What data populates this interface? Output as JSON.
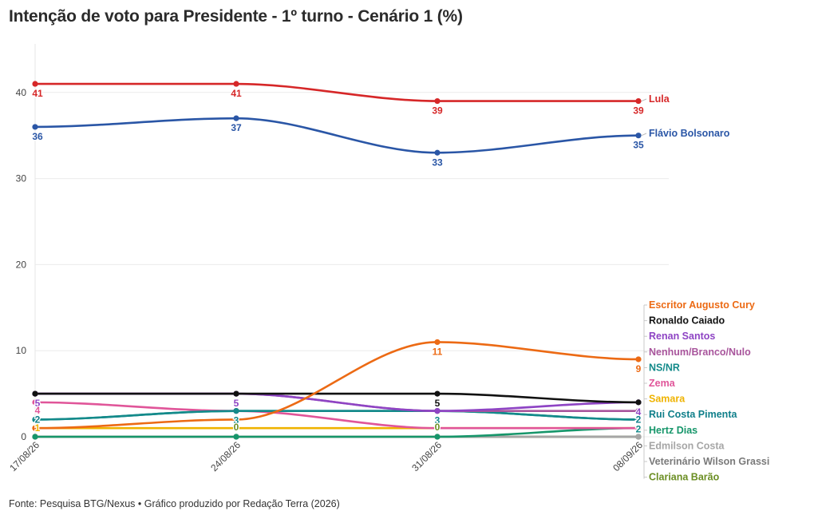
{
  "title": "Intenção de voto para Presidente - 1º turno - Cenário 1 (%)",
  "footer": "Fonte: Pesquisa BTG/Nexus • Gráfico produzido por Redação Terra (2026)",
  "chart_data": {
    "type": "line",
    "categories": [
      "17/08/26",
      "24/08/26",
      "31/08/26",
      "08/09/26"
    ],
    "ylim": [
      0,
      45
    ],
    "yticks": [
      0,
      10,
      20,
      30,
      40
    ],
    "grid": true,
    "legend": "direct labels at line ends (right)",
    "series": [
      {
        "name": "Lula",
        "values": [
          41,
          41,
          39,
          39
        ],
        "color": "#d62728"
      },
      {
        "name": "Flávio Bolsonaro",
        "values": [
          36,
          37,
          33,
          35
        ],
        "color": "#2a56a6"
      },
      {
        "name": "Escritor Augusto Cury",
        "values": [
          1,
          2,
          11,
          9
        ],
        "color": "#ec6a14"
      },
      {
        "name": "Ronaldo Caiado",
        "values": [
          5,
          5,
          5,
          4
        ],
        "color": "#111111"
      },
      {
        "name": "Renan Santos",
        "values": [
          5,
          5,
          3,
          4
        ],
        "color": "#8e44c4"
      },
      {
        "name": "Nenhum/Branco/Nulo",
        "values": [
          5,
          5,
          3,
          3
        ],
        "color": "#a8559c"
      },
      {
        "name": "NS/NR",
        "values": [
          2,
          3,
          3,
          2
        ],
        "color": "#138a8a"
      },
      {
        "name": "Zema",
        "values": [
          4,
          3,
          1,
          1
        ],
        "color": "#e05599"
      },
      {
        "name": "Samara",
        "values": [
          1,
          1,
          1,
          1
        ],
        "color": "#efb300"
      },
      {
        "name": "Rui Costa Pimenta",
        "values": [
          2,
          3,
          3,
          2
        ],
        "color": "#0f7f8a"
      },
      {
        "name": "Hertz Dias",
        "values": [
          0,
          0,
          0,
          1
        ],
        "color": "#16966a"
      },
      {
        "name": "Edmilson Costa",
        "values": [
          0,
          0,
          0,
          0
        ],
        "color": "#a6a6a6"
      },
      {
        "name": "Veterinário Wilson Grassi",
        "values": [
          0,
          0,
          0,
          0
        ],
        "color": "#7a7a7a"
      },
      {
        "name": "Clariana Barão",
        "values": [
          0,
          0,
          0,
          0
        ],
        "color": "#6b8e23"
      }
    ],
    "data_labels": [
      {
        "series": "Lula",
        "values": [
          "41",
          "41",
          "39",
          "39"
        ]
      },
      {
        "series": "Flávio Bolsonaro",
        "values": [
          "36",
          "37",
          "33",
          "35"
        ]
      },
      {
        "series": "Escritor Augusto Cury",
        "values": [
          "",
          "",
          "11",
          "9"
        ]
      },
      {
        "series": "Ronaldo Caiado",
        "values": [
          "",
          "",
          "5",
          ""
        ]
      },
      {
        "series": "Renan Santos",
        "values": [
          "5",
          "5",
          "",
          "4"
        ]
      },
      {
        "series": "Zema",
        "values": [
          "4",
          "",
          "",
          ""
        ]
      },
      {
        "series": "Nenhum/Branco/Nulo",
        "values": [
          "",
          "",
          "",
          "3"
        ]
      },
      {
        "series": "NS/NR",
        "values": [
          "",
          "3",
          "3",
          "2"
        ]
      },
      {
        "series": "Samara",
        "values": [
          "1",
          "",
          "",
          ""
        ]
      },
      {
        "series": "Rui Costa Pimenta",
        "values": [
          "2",
          "",
          "",
          "2"
        ]
      },
      {
        "series": "Clariana Barão",
        "values": [
          "",
          "0",
          "0",
          ""
        ]
      }
    ]
  }
}
